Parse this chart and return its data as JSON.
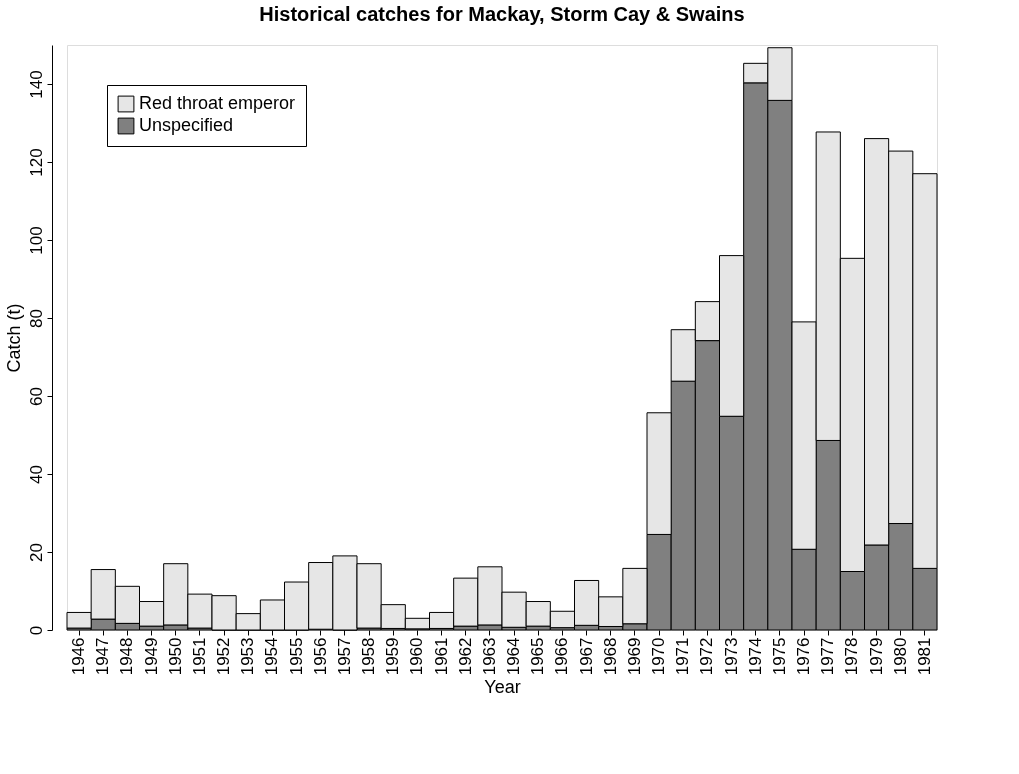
{
  "chart_data": {
    "type": "bar",
    "title": "Historical catches for Mackay, Storm Cay & Swains",
    "xlabel": "Year",
    "ylabel": "Catch (t)",
    "categories": [
      "1946",
      "1947",
      "1948",
      "1949",
      "1950",
      "1951",
      "1952",
      "1953",
      "1954",
      "1955",
      "1956",
      "1957",
      "1958",
      "1959",
      "1960",
      "1961",
      "1962",
      "1963",
      "1964",
      "1965",
      "1966",
      "1967",
      "1968",
      "1969",
      "1970",
      "1971",
      "1972",
      "1973",
      "1974",
      "1975",
      "1976",
      "1977",
      "1978",
      "1979",
      "1980",
      "1981"
    ],
    "stacked": true,
    "series": [
      {
        "name": "Unspecified",
        "color": "#808080",
        "values": [
          0.5,
          2.8,
          1.7,
          1.0,
          1.3,
          0.5,
          0,
          0,
          0,
          0,
          0.2,
          0,
          0.5,
          0.4,
          0.3,
          0.4,
          1.0,
          1.3,
          0.7,
          1.0,
          0.6,
          1.2,
          0.9,
          1.6,
          24.5,
          63.8,
          74.2,
          54.8,
          140.3,
          135.8,
          20.7,
          48.6,
          15.0,
          21.8,
          27.3,
          15.8
        ]
      },
      {
        "name": "Red throat emperor",
        "color": "#e6e6e6",
        "values": [
          4.0,
          12.7,
          9.5,
          6.3,
          15.7,
          8.7,
          8.8,
          4.2,
          7.7,
          12.3,
          17.1,
          19.0,
          16.5,
          6.1,
          2.7,
          4.1,
          12.3,
          14.9,
          9.0,
          6.3,
          4.2,
          11.5,
          7.6,
          14.2,
          31.2,
          13.2,
          10.0,
          41.2,
          5.0,
          13.5,
          58.3,
          79.1,
          80.3,
          104.2,
          95.5,
          101.2
        ]
      }
    ],
    "ylim": [
      0,
      150
    ],
    "yticks": [
      0,
      20,
      40,
      60,
      80,
      100,
      120,
      140
    ],
    "grid": false,
    "legend": "top left"
  }
}
